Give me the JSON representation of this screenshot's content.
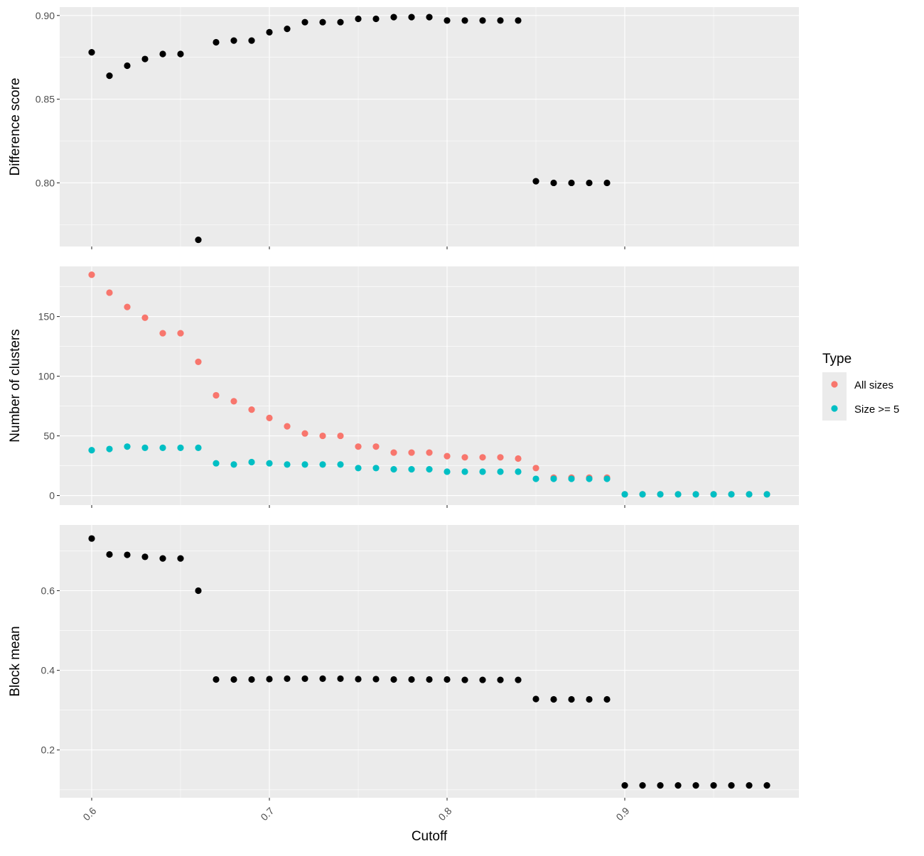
{
  "chart_data": [
    {
      "type": "scatter",
      "title": "",
      "xlabel": "",
      "ylabel": "Difference score",
      "xlim": [
        0.582,
        0.998
      ],
      "ylim": [
        0.762,
        0.905
      ],
      "yticks": [
        0.8,
        0.85,
        0.9
      ],
      "ytick_labels": [
        "0.80",
        "0.85",
        "0.90"
      ],
      "grid": true,
      "series": [
        {
          "color": "#000000",
          "x": [
            0.6,
            0.61,
            0.62,
            0.63,
            0.64,
            0.65,
            0.66,
            0.67,
            0.68,
            0.69,
            0.7,
            0.71,
            0.72,
            0.73,
            0.74,
            0.75,
            0.76,
            0.77,
            0.78,
            0.79,
            0.8,
            0.81,
            0.82,
            0.83,
            0.84,
            0.85,
            0.86,
            0.87,
            0.88,
            0.89
          ],
          "y": [
            0.878,
            0.864,
            0.87,
            0.874,
            0.877,
            0.877,
            0.766,
            0.884,
            0.885,
            0.885,
            0.89,
            0.892,
            0.896,
            0.896,
            0.896,
            0.898,
            0.898,
            0.899,
            0.899,
            0.899,
            0.897,
            0.897,
            0.897,
            0.897,
            0.897,
            0.801,
            0.8,
            0.8,
            0.8,
            0.8
          ]
        }
      ]
    },
    {
      "type": "scatter",
      "title": "",
      "xlabel": "",
      "ylabel": "Number of clusters",
      "xlim": [
        0.582,
        0.998
      ],
      "ylim": [
        -8,
        192
      ],
      "yticks": [
        0,
        50,
        100,
        150
      ],
      "ytick_labels": [
        "0",
        "50",
        "100",
        "150"
      ],
      "grid": true,
      "legend": {
        "title": "Type",
        "placement": "right",
        "entries": [
          "All sizes",
          "Size >= 5"
        ]
      },
      "series": [
        {
          "name": "All sizes",
          "color": "#F8766D",
          "x": [
            0.6,
            0.61,
            0.62,
            0.63,
            0.64,
            0.65,
            0.66,
            0.67,
            0.68,
            0.69,
            0.7,
            0.71,
            0.72,
            0.73,
            0.74,
            0.75,
            0.76,
            0.77,
            0.78,
            0.79,
            0.8,
            0.81,
            0.82,
            0.83,
            0.84,
            0.85,
            0.86,
            0.87,
            0.88,
            0.89,
            0.9,
            0.91,
            0.92,
            0.93,
            0.94,
            0.95,
            0.96,
            0.97,
            0.98
          ],
          "y": [
            185,
            170,
            158,
            149,
            136,
            136,
            112,
            84,
            79,
            72,
            65,
            58,
            52,
            50,
            50,
            41,
            41,
            36,
            36,
            36,
            33,
            32,
            32,
            32,
            31,
            23,
            15,
            15,
            15,
            15,
            1,
            1,
            1,
            1,
            1,
            1,
            1,
            1,
            1
          ]
        },
        {
          "name": "Size >= 5",
          "color": "#00BFC4",
          "x": [
            0.6,
            0.61,
            0.62,
            0.63,
            0.64,
            0.65,
            0.66,
            0.67,
            0.68,
            0.69,
            0.7,
            0.71,
            0.72,
            0.73,
            0.74,
            0.75,
            0.76,
            0.77,
            0.78,
            0.79,
            0.8,
            0.81,
            0.82,
            0.83,
            0.84,
            0.85,
            0.86,
            0.87,
            0.88,
            0.89,
            0.9,
            0.91,
            0.92,
            0.93,
            0.94,
            0.95,
            0.96,
            0.97,
            0.98
          ],
          "y": [
            38,
            39,
            41,
            40,
            40,
            40,
            40,
            27,
            26,
            28,
            27,
            26,
            26,
            26,
            26,
            23,
            23,
            22,
            22,
            22,
            20,
            20,
            20,
            20,
            20,
            14,
            14,
            14,
            14,
            14,
            1,
            1,
            1,
            1,
            1,
            1,
            1,
            1,
            1
          ]
        }
      ]
    },
    {
      "type": "scatter",
      "title": "",
      "xlabel": "Cutoff",
      "ylabel": "Block mean",
      "xlim": [
        0.582,
        0.998
      ],
      "ylim": [
        0.08,
        0.765
      ],
      "yticks": [
        0.2,
        0.4,
        0.6
      ],
      "ytick_labels": [
        "0.2",
        "0.4",
        "0.6"
      ],
      "xticks": [
        0.6,
        0.7,
        0.8,
        0.9
      ],
      "xtick_labels": [
        "0.6",
        "0.7",
        "0.8",
        "0.9"
      ],
      "grid": true,
      "series": [
        {
          "color": "#000000",
          "x": [
            0.6,
            0.61,
            0.62,
            0.63,
            0.64,
            0.65,
            0.66,
            0.67,
            0.68,
            0.69,
            0.7,
            0.71,
            0.72,
            0.73,
            0.74,
            0.75,
            0.76,
            0.77,
            0.78,
            0.79,
            0.8,
            0.81,
            0.82,
            0.83,
            0.84,
            0.85,
            0.86,
            0.87,
            0.88,
            0.89,
            0.9,
            0.91,
            0.92,
            0.93,
            0.94,
            0.95,
            0.96,
            0.97,
            0.98
          ],
          "y": [
            0.731,
            0.691,
            0.69,
            0.685,
            0.681,
            0.681,
            0.6,
            0.377,
            0.377,
            0.377,
            0.378,
            0.379,
            0.379,
            0.379,
            0.379,
            0.378,
            0.378,
            0.377,
            0.377,
            0.377,
            0.377,
            0.376,
            0.376,
            0.376,
            0.376,
            0.328,
            0.327,
            0.327,
            0.327,
            0.327,
            0.111,
            0.111,
            0.111,
            0.111,
            0.111,
            0.111,
            0.111,
            0.111,
            0.111
          ]
        }
      ]
    }
  ]
}
